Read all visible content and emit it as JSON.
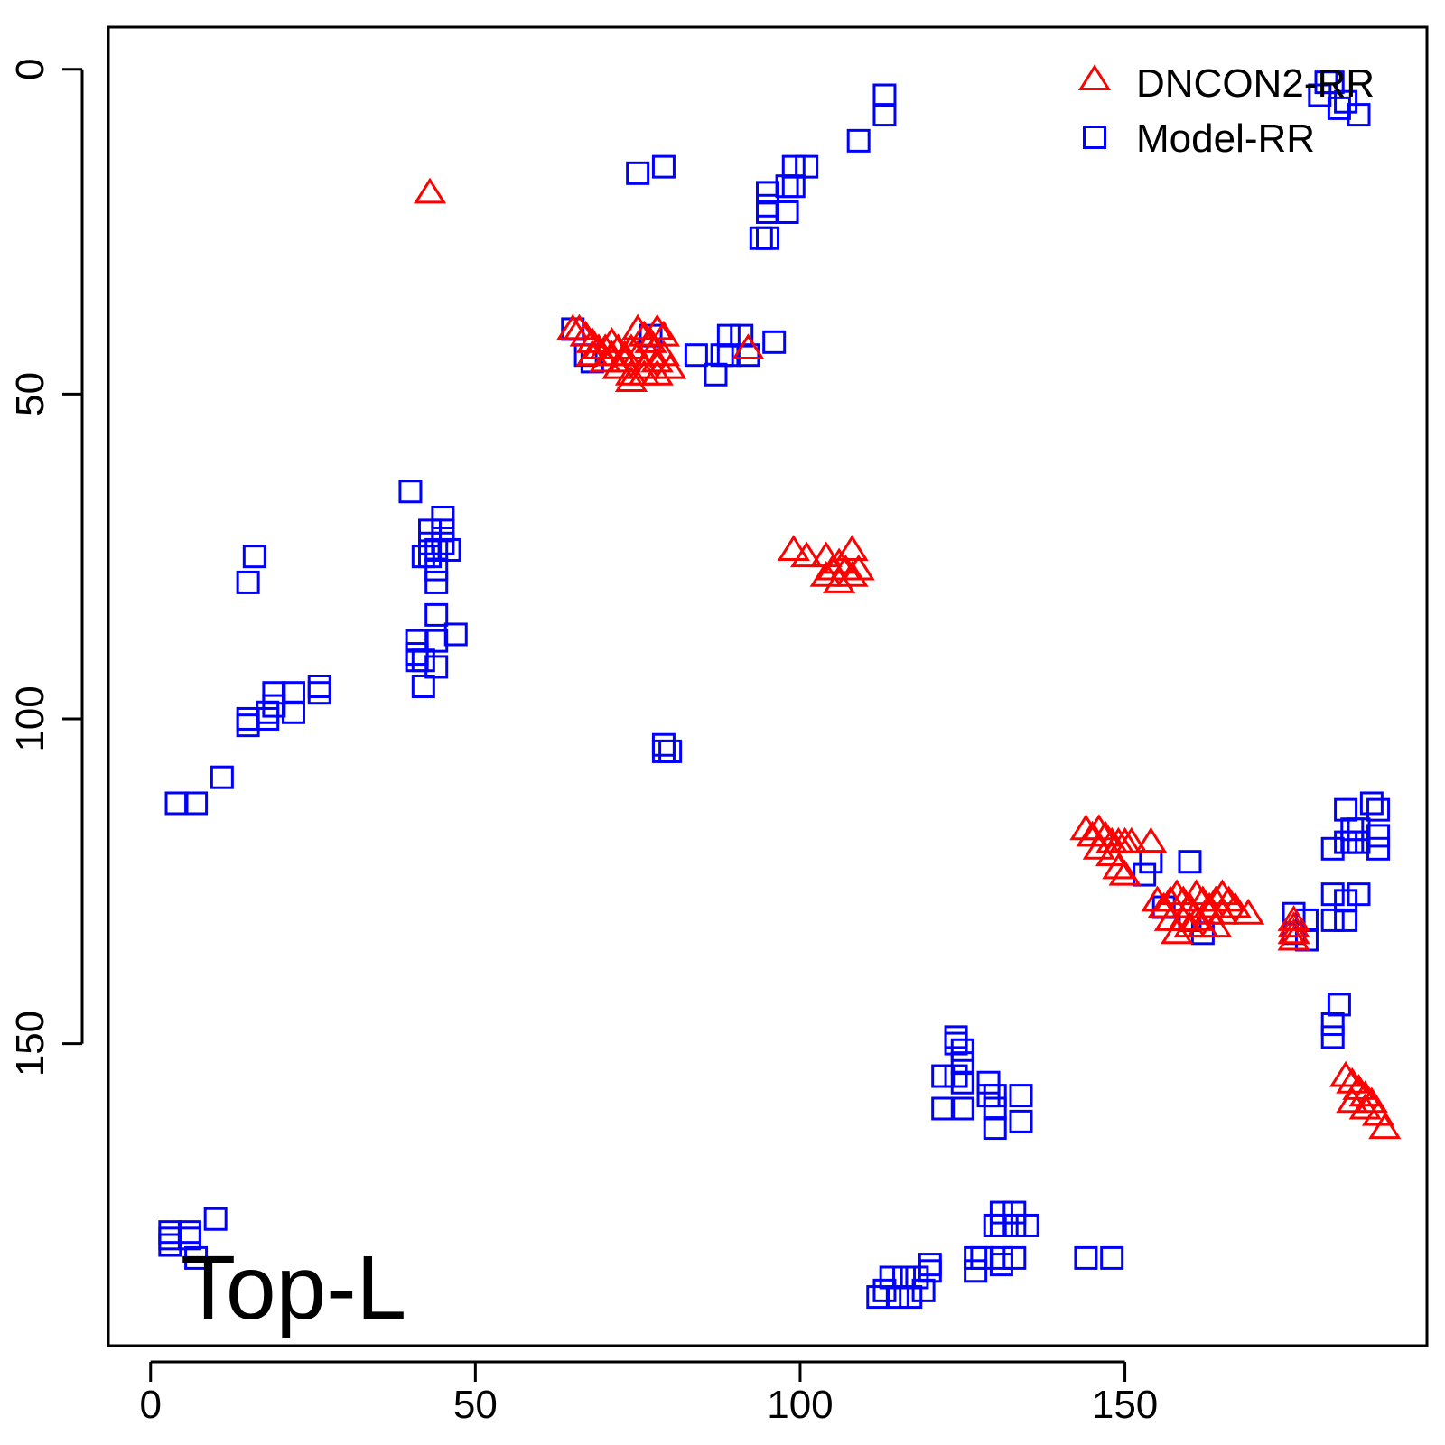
{
  "chart_data": {
    "type": "scatter",
    "title": "",
    "xlabel": "",
    "ylabel": "",
    "xlim": [
      -6.5,
      196.5
    ],
    "ylim": [
      -6.5,
      196.5
    ],
    "y_inverted": true,
    "xticks": [
      0,
      50,
      100,
      150
    ],
    "yticks": [
      0,
      50,
      100,
      150
    ],
    "x_tick_labels": [
      "0",
      "50",
      "100",
      "150"
    ],
    "y_tick_labels": [
      "0",
      "50",
      "100",
      "150"
    ],
    "grid": false,
    "legend_position": "top-right",
    "annotation": "Top-L",
    "series": [
      {
        "name": "DNCON2-RR",
        "marker": "triangle",
        "color": "#ff0000",
        "points": [
          [
            43,
            19
          ],
          [
            65,
            40
          ],
          [
            66,
            40
          ],
          [
            67,
            41
          ],
          [
            68,
            42
          ],
          [
            69,
            43
          ],
          [
            70,
            43
          ],
          [
            71,
            42
          ],
          [
            72,
            43
          ],
          [
            73,
            44
          ],
          [
            74,
            43
          ],
          [
            75,
            40
          ],
          [
            76,
            41
          ],
          [
            77,
            42
          ],
          [
            78,
            40
          ],
          [
            79,
            41
          ],
          [
            68,
            44
          ],
          [
            70,
            45
          ],
          [
            72,
            46
          ],
          [
            74,
            47
          ],
          [
            76,
            46
          ],
          [
            78,
            45
          ],
          [
            71,
            44
          ],
          [
            73,
            45
          ],
          [
            75,
            44
          ],
          [
            77,
            44
          ],
          [
            79,
            44
          ],
          [
            74,
            48
          ],
          [
            76,
            47
          ],
          [
            78,
            47
          ],
          [
            80,
            46
          ],
          [
            92,
            43
          ],
          [
            99,
            74
          ],
          [
            101,
            75
          ],
          [
            104,
            75
          ],
          [
            106,
            76
          ],
          [
            108,
            74
          ],
          [
            105,
            77
          ],
          [
            107,
            77
          ],
          [
            109,
            77
          ],
          [
            104,
            78
          ],
          [
            106,
            79
          ],
          [
            108,
            78
          ],
          [
            144,
            117
          ],
          [
            145,
            118
          ],
          [
            146,
            117
          ],
          [
            147,
            118
          ],
          [
            148,
            119
          ],
          [
            149,
            119
          ],
          [
            150,
            119
          ],
          [
            151,
            119
          ],
          [
            154,
            119
          ],
          [
            146,
            120
          ],
          [
            148,
            121
          ],
          [
            149,
            123
          ],
          [
            150,
            124
          ],
          [
            155,
            128
          ],
          [
            156,
            129
          ],
          [
            157,
            128
          ],
          [
            158,
            127
          ],
          [
            159,
            128
          ],
          [
            160,
            129
          ],
          [
            161,
            127
          ],
          [
            162,
            128
          ],
          [
            163,
            129
          ],
          [
            164,
            128
          ],
          [
            165,
            127
          ],
          [
            166,
            128
          ],
          [
            167,
            129
          ],
          [
            169,
            130
          ],
          [
            157,
            131
          ],
          [
            159,
            131
          ],
          [
            161,
            131
          ],
          [
            163,
            130
          ],
          [
            165,
            130
          ],
          [
            160,
            132
          ],
          [
            162,
            132
          ],
          [
            164,
            132
          ],
          [
            158,
            133
          ],
          [
            176,
            131
          ],
          [
            176,
            132
          ],
          [
            176,
            133
          ],
          [
            176,
            134
          ],
          [
            184,
            155
          ],
          [
            185,
            156
          ],
          [
            186,
            157
          ],
          [
            187,
            158
          ],
          [
            188,
            159
          ],
          [
            185,
            159
          ],
          [
            187,
            160
          ],
          [
            189,
            161
          ],
          [
            190,
            163
          ]
        ]
      },
      {
        "name": "Model-RR",
        "marker": "square",
        "color": "#0000ff",
        "points": [
          [
            3,
            179
          ],
          [
            3,
            180
          ],
          [
            3,
            181
          ],
          [
            6,
            179
          ],
          [
            6,
            180
          ],
          [
            7,
            183
          ],
          [
            10,
            177
          ],
          [
            4,
            113
          ],
          [
            7,
            113
          ],
          [
            11,
            109
          ],
          [
            15,
            79
          ],
          [
            16,
            75
          ],
          [
            15,
            100
          ],
          [
            15,
            101
          ],
          [
            18,
            99
          ],
          [
            18,
            100
          ],
          [
            19,
            98
          ],
          [
            19,
            96
          ],
          [
            22,
            96
          ],
          [
            22,
            99
          ],
          [
            26,
            95
          ],
          [
            26,
            96
          ],
          [
            40,
            65
          ],
          [
            41,
            88
          ],
          [
            41,
            90
          ],
          [
            41,
            91
          ],
          [
            42,
            91
          ],
          [
            42,
            75
          ],
          [
            42,
            95
          ],
          [
            43,
            71
          ],
          [
            43,
            73
          ],
          [
            43,
            75
          ],
          [
            44,
            74
          ],
          [
            44,
            77
          ],
          [
            44,
            79
          ],
          [
            44,
            84
          ],
          [
            44,
            88
          ],
          [
            44,
            92
          ],
          [
            45,
            69
          ],
          [
            45,
            71
          ],
          [
            45,
            73
          ],
          [
            46,
            74
          ],
          [
            47,
            87
          ],
          [
            65,
            40
          ],
          [
            67,
            44
          ],
          [
            68,
            45
          ],
          [
            75,
            16
          ],
          [
            77,
            41
          ],
          [
            79,
            15
          ],
          [
            79,
            104
          ],
          [
            79,
            105
          ],
          [
            80,
            105
          ],
          [
            84,
            44
          ],
          [
            87,
            47
          ],
          [
            88,
            44
          ],
          [
            89,
            41
          ],
          [
            89,
            44
          ],
          [
            91,
            41
          ],
          [
            92,
            44
          ],
          [
            94,
            26
          ],
          [
            95,
            19
          ],
          [
            95,
            21
          ],
          [
            95,
            22
          ],
          [
            95,
            26
          ],
          [
            96,
            42
          ],
          [
            98,
            18
          ],
          [
            98,
            22
          ],
          [
            99,
            15
          ],
          [
            99,
            18
          ],
          [
            101,
            15
          ],
          [
            109,
            11
          ],
          [
            113,
            4
          ],
          [
            113,
            7
          ],
          [
            112,
            189
          ],
          [
            113,
            188
          ],
          [
            114,
            186
          ],
          [
            115,
            189
          ],
          [
            116,
            186
          ],
          [
            117,
            189
          ],
          [
            118,
            186
          ],
          [
            119,
            188
          ],
          [
            120,
            185
          ],
          [
            120,
            184
          ],
          [
            124,
            149
          ],
          [
            124,
            150
          ],
          [
            125,
            151
          ],
          [
            125,
            153
          ],
          [
            122,
            155
          ],
          [
            124,
            155
          ],
          [
            125,
            156
          ],
          [
            122,
            160
          ],
          [
            125,
            160
          ],
          [
            127,
            183
          ],
          [
            127,
            185
          ],
          [
            128,
            183
          ],
          [
            129,
            156
          ],
          [
            129,
            158
          ],
          [
            130,
            158
          ],
          [
            130,
            160
          ],
          [
            130,
            163
          ],
          [
            131,
            176
          ],
          [
            130,
            178
          ],
          [
            131,
            178
          ],
          [
            131,
            183
          ],
          [
            131,
            184
          ],
          [
            133,
            176
          ],
          [
            133,
            178
          ],
          [
            134,
            158
          ],
          [
            134,
            162
          ],
          [
            135,
            178
          ],
          [
            133,
            183
          ],
          [
            144,
            183
          ],
          [
            148,
            183
          ],
          [
            153,
            124
          ],
          [
            154,
            122
          ],
          [
            156,
            129
          ],
          [
            160,
            122
          ],
          [
            160,
            131
          ],
          [
            162,
            133
          ],
          [
            176,
            130
          ],
          [
            176,
            133
          ],
          [
            178,
            131
          ],
          [
            178,
            134
          ],
          [
            181,
            2
          ],
          [
            182,
            2
          ],
          [
            183,
            6
          ],
          [
            184,
            5
          ],
          [
            182,
            120
          ],
          [
            182,
            127
          ],
          [
            182,
            131
          ],
          [
            184,
            128
          ],
          [
            184,
            131
          ],
          [
            184,
            114
          ],
          [
            184,
            119
          ],
          [
            185,
            117
          ],
          [
            185,
            119
          ],
          [
            186,
            117
          ],
          [
            186,
            119
          ],
          [
            186,
            127
          ],
          [
            189,
            114
          ],
          [
            189,
            118
          ],
          [
            189,
            120
          ],
          [
            188,
            113
          ],
          [
            182,
            147
          ],
          [
            182,
            149
          ],
          [
            186,
            7
          ],
          [
            183,
            144
          ],
          [
            180,
            4
          ]
        ]
      }
    ]
  }
}
